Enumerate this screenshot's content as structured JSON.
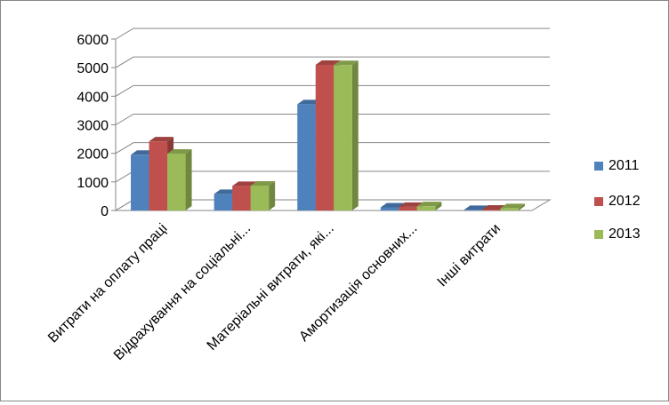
{
  "chart_data": {
    "type": "bar",
    "variant": "3d-clustered-column",
    "categories": [
      "Витрати на оплату праці",
      "Відрахування на соціальні...",
      "Матеріальні витрати, які...",
      "Амортизація основних...",
      "Інші витрати"
    ],
    "series": [
      {
        "name": "2011",
        "color": "#4F81BD",
        "values": [
          1950,
          580,
          3720,
          110,
          20
        ]
      },
      {
        "name": "2012",
        "color": "#C0504D",
        "values": [
          2420,
          860,
          5100,
          130,
          30
        ]
      },
      {
        "name": "2013",
        "color": "#9BBB59",
        "values": [
          1990,
          870,
          5090,
          150,
          80
        ]
      }
    ],
    "y_ticks": [
      "0",
      "1000",
      "2000",
      "3000",
      "4000",
      "5000",
      "6000"
    ],
    "ylim": [
      0,
      6000
    ],
    "grid": true,
    "legend_position": "right"
  }
}
